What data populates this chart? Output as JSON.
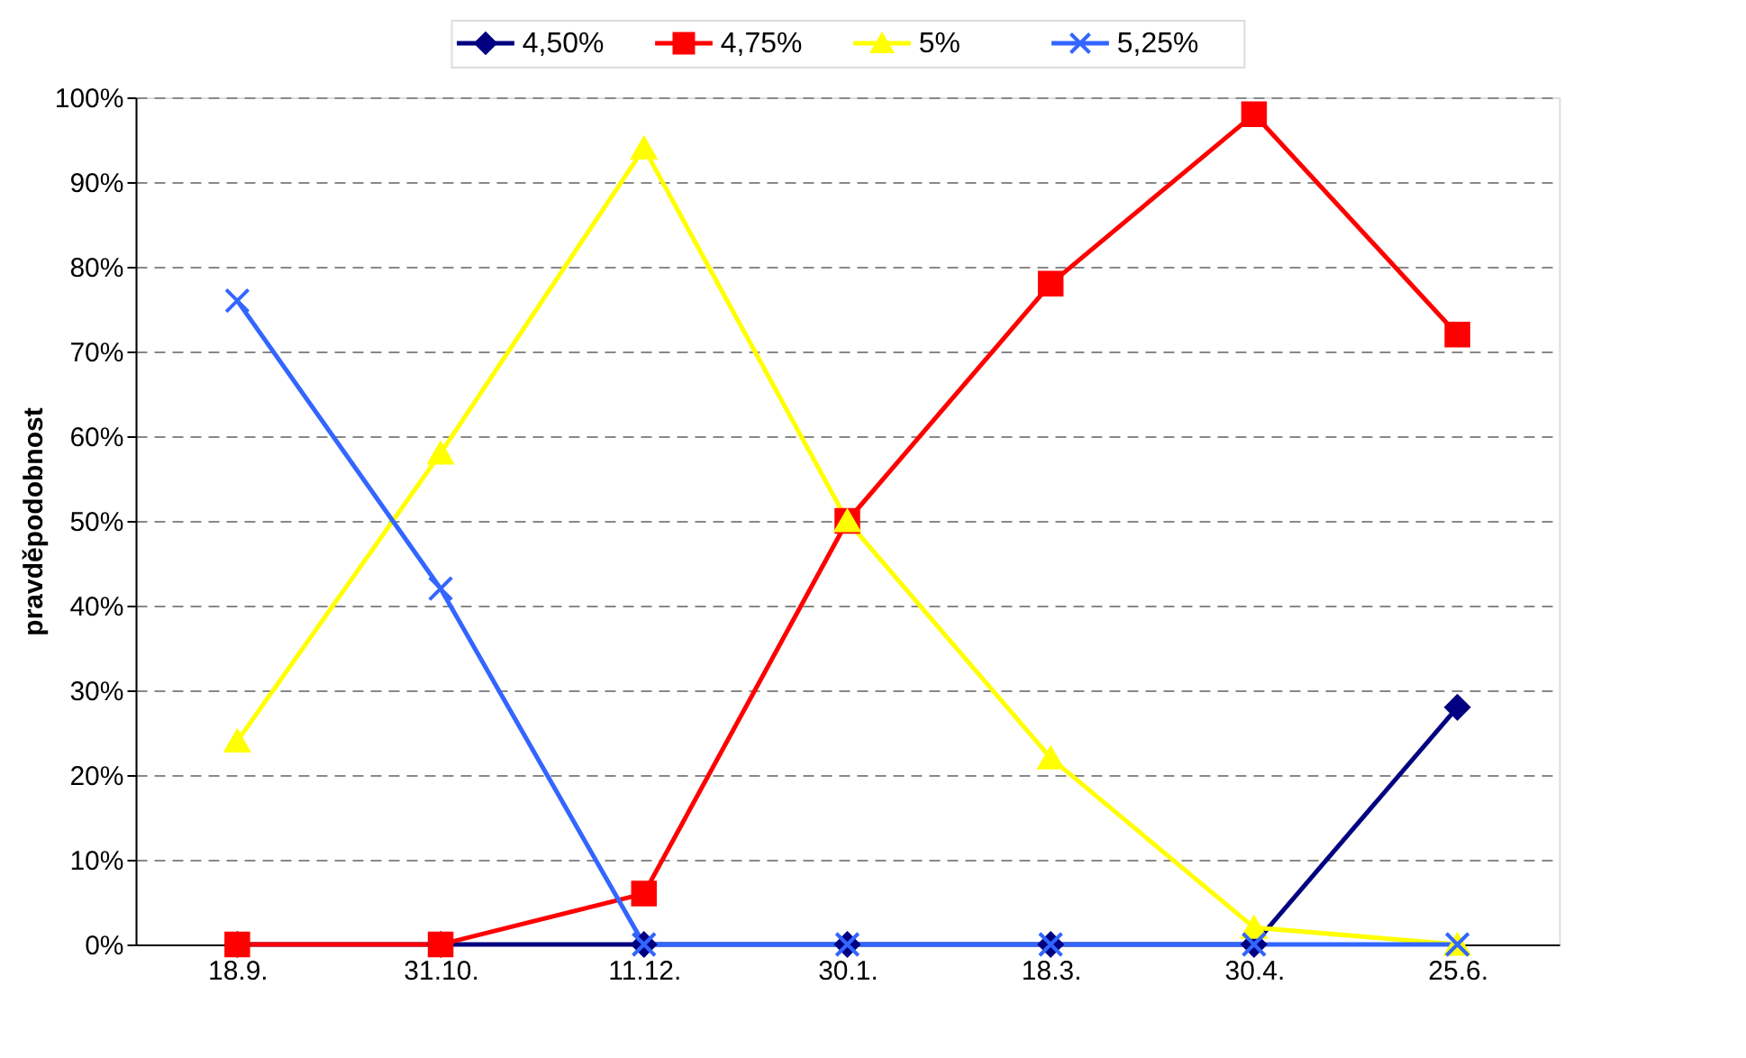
{
  "chart_data": {
    "type": "line",
    "ylabel": "pravděpodobnost",
    "categories": [
      "18.9.",
      "31.10.",
      "11.12.",
      "30.1.",
      "18.3.",
      "30.4.",
      "25.6."
    ],
    "series": [
      {
        "name": "4,50%",
        "color": "#000080",
        "marker": "diamond",
        "values": [
          0,
          0,
          0,
          0,
          0,
          0,
          28
        ]
      },
      {
        "name": "4,75%",
        "color": "#ff0000",
        "marker": "square",
        "values": [
          0,
          0,
          6,
          50,
          78,
          98,
          72
        ]
      },
      {
        "name": "5%",
        "color": "#ffff00",
        "marker": "triangle",
        "values": [
          24,
          58,
          94,
          50,
          22,
          2,
          0
        ]
      },
      {
        "name": "5,25%",
        "color": "#3366ff",
        "marker": "cross",
        "values": [
          76,
          42,
          0,
          0,
          0,
          0,
          0
        ]
      }
    ],
    "ylim": [
      0,
      100
    ],
    "yticks": [
      {
        "value": 0,
        "label": "0%"
      },
      {
        "value": 10,
        "label": "10%"
      },
      {
        "value": 20,
        "label": "20%"
      },
      {
        "value": 30,
        "label": "30%"
      },
      {
        "value": 40,
        "label": "40%"
      },
      {
        "value": 50,
        "label": "50%"
      },
      {
        "value": 60,
        "label": "60%"
      },
      {
        "value": 70,
        "label": "70%"
      },
      {
        "value": 80,
        "label": "80%"
      },
      {
        "value": 90,
        "label": "90%"
      },
      {
        "value": 100,
        "label": "100%"
      }
    ],
    "grid": "y",
    "legend": "top",
    "line_style": "solid"
  }
}
